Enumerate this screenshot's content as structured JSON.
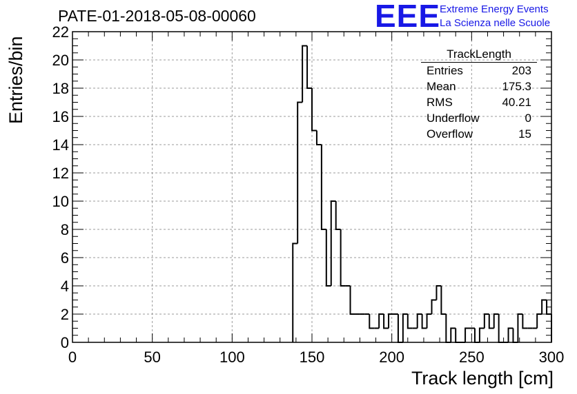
{
  "header": {
    "run_title": "PATE-01-2018-05-08-00060",
    "logo_mark": "EEE",
    "logo_line1": "Extreme Energy Events",
    "logo_line2": "La Scienza nelle Scuole"
  },
  "stats": {
    "title": "TrackLength",
    "rows": [
      {
        "key": "Entries",
        "value": "203"
      },
      {
        "key": "Mean",
        "value": "175.3"
      },
      {
        "key": "RMS",
        "value": "40.21"
      },
      {
        "key": "Underflow",
        "value": "0"
      },
      {
        "key": "Overflow",
        "value": "15"
      }
    ]
  },
  "colors": {
    "logo": "#1818e6",
    "line": "#000000",
    "grid": "#9a9a9a"
  },
  "chart_data": {
    "type": "bar",
    "histogram": true,
    "xlabel": "Track length [cm]",
    "ylabel": "Entries/bin",
    "xlim": [
      0,
      300
    ],
    "ylim": [
      0,
      22
    ],
    "xticks": [
      0,
      50,
      100,
      150,
      200,
      250,
      300
    ],
    "yticks": [
      0,
      2,
      4,
      6,
      8,
      10,
      12,
      14,
      16,
      18,
      20,
      22
    ],
    "grid": true,
    "bin_width": 3,
    "bin_edges_start": 138,
    "values": [
      7,
      17,
      21,
      18,
      15,
      14,
      8,
      4,
      10,
      8,
      4,
      4,
      2,
      2,
      2,
      2,
      1,
      1,
      2,
      1,
      2,
      2,
      0,
      2,
      1,
      1,
      2,
      1,
      2,
      3,
      4,
      2,
      0,
      1,
      0,
      0,
      1,
      1,
      0,
      1,
      2,
      1,
      2,
      0,
      0,
      1,
      0,
      2,
      1,
      1,
      1,
      2,
      3,
      2
    ]
  }
}
